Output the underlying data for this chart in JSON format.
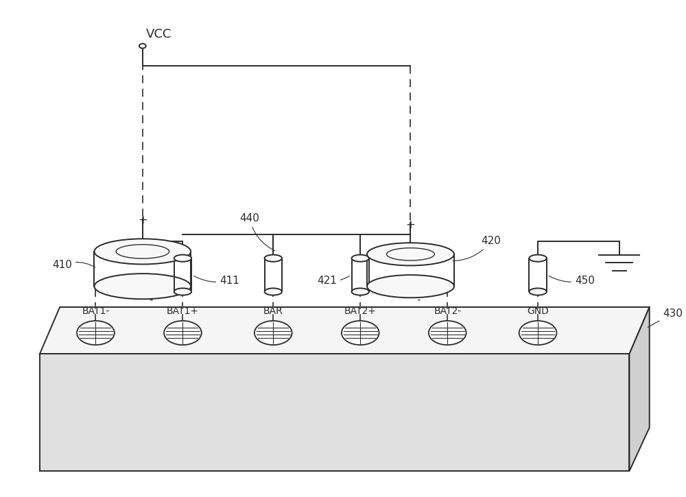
{
  "bg_color": "#ffffff",
  "lc": "#2a2a2a",
  "dc": "#4a4a4a",
  "board_face_color": "#f5f5f5",
  "board_side_color": "#e0e0e0",
  "board_right_color": "#d0d0d0",
  "vcc_label": "VCC",
  "label_410": "410",
  "label_411": "411",
  "label_420": "420",
  "label_421": "421",
  "label_430": "430",
  "label_440": "440",
  "label_450": "450",
  "connector_labels": [
    "BAT1-",
    "BAT1+",
    "BAR",
    "BAT2+",
    "BAT2-",
    "GND"
  ],
  "font_size": 10,
  "font_size_label": 11,
  "lw": 1.4
}
